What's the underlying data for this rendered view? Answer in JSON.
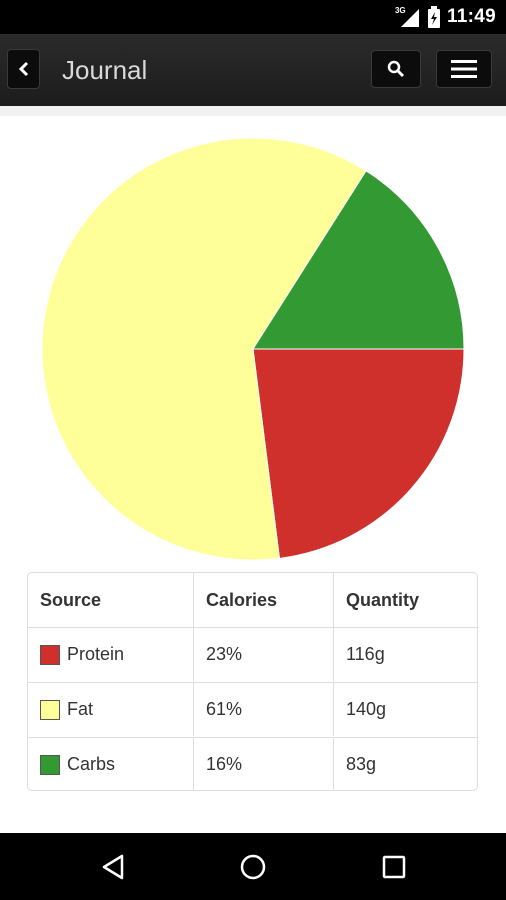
{
  "status_bar": {
    "time": "11:49",
    "network": "3G"
  },
  "header": {
    "title": "Journal"
  },
  "colors": {
    "protein": "#d0302c",
    "fat": "#ffff99",
    "carbs": "#339933"
  },
  "chart_data": {
    "type": "pie",
    "categories": [
      "Protein",
      "Fat",
      "Carbs"
    ],
    "values": [
      23,
      61,
      16
    ],
    "units": "percent of calories",
    "title": ""
  },
  "table": {
    "headers": [
      "Source",
      "Calories",
      "Quantity"
    ],
    "rows": [
      {
        "source": "Protein",
        "calories": "23%",
        "quantity": "116g"
      },
      {
        "source": "Fat",
        "calories": "61%",
        "quantity": "140g"
      },
      {
        "source": "Carbs",
        "calories": "16%",
        "quantity": "83g"
      }
    ]
  },
  "nav": {
    "icons": [
      "back-triangle-icon",
      "home-circle-icon",
      "recents-square-icon"
    ]
  }
}
